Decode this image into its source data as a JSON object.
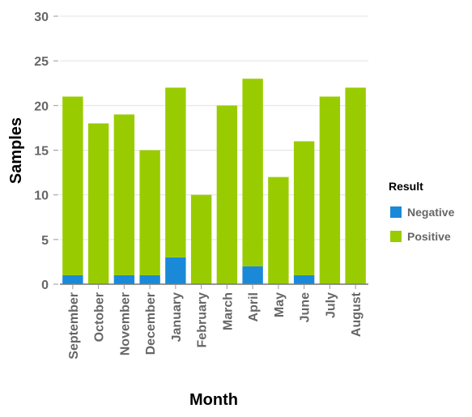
{
  "chart_data": {
    "type": "bar",
    "stacked": true,
    "title": "",
    "xlabel": "Month",
    "ylabel": "Samples",
    "ylim": [
      0,
      30
    ],
    "yticks": [
      0,
      5,
      10,
      15,
      20,
      25,
      30
    ],
    "grid": true,
    "categories": [
      "September",
      "October",
      "November",
      "December",
      "January",
      "February",
      "March",
      "April",
      "May",
      "June",
      "July",
      "August"
    ],
    "series": [
      {
        "name": "Negative",
        "color": "#1a8ad8",
        "values": [
          1,
          0,
          1,
          1,
          3,
          0,
          0,
          2,
          0,
          1,
          0,
          0
        ]
      },
      {
        "name": "Positive",
        "color": "#99cc00",
        "values": [
          20,
          18,
          18,
          14,
          19,
          10,
          20,
          21,
          12,
          15,
          21,
          22
        ]
      }
    ],
    "legend": {
      "title": "Result",
      "position": "right"
    }
  }
}
